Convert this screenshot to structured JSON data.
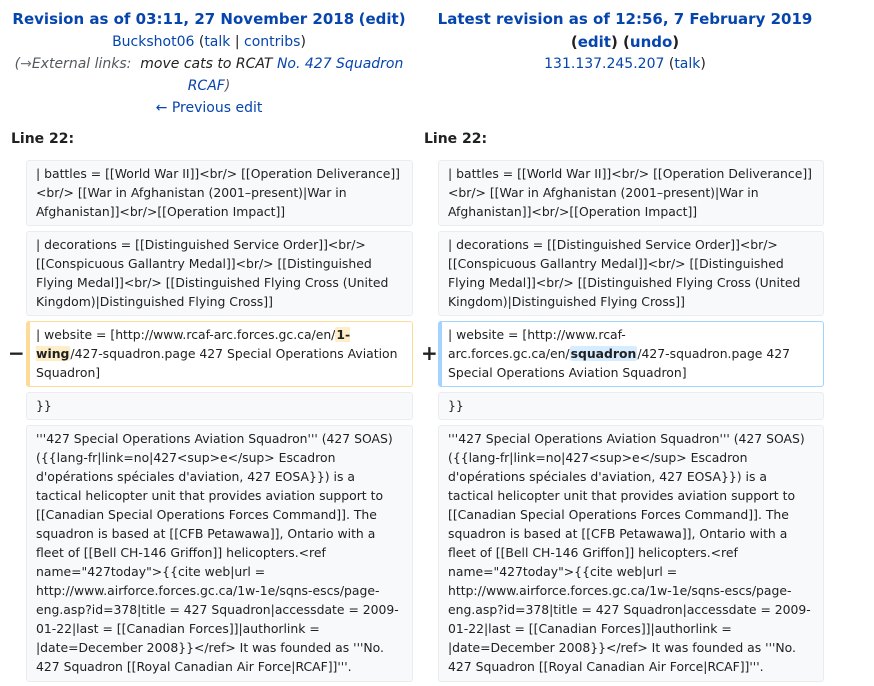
{
  "left": {
    "title_prefix": "Revision as of 03:11, 27 November 2018",
    "title_edit": "edit",
    "user": "Buckshot06",
    "talk": "talk",
    "contribs": "contribs",
    "summary_arrow": "→",
    "summary_section": "External links:",
    "summary_text": "move cats to RCAT",
    "summary_link": "No. 427 Squadron RCAF",
    "prev_edit": "← Previous edit",
    "line_label": "Line 22:"
  },
  "right": {
    "title": "Latest revision as of 12:56, 7 February 2019",
    "edit": "edit",
    "undo": "undo",
    "user": "131.137.245.207",
    "talk": "talk",
    "line_label": "Line 22:"
  },
  "diff": {
    "ctx1": "| battles = [[World War II]]<br/> [[Operation Deliverance]]<br/> [[War in Afghanistan (2001–present)|War in Afghanistan]]<br/>[[Operation Impact]]",
    "ctx2": "| decorations = [[Distinguished Service Order]]<br/> [[Conspicuous Gallantry Medal]]<br/> [[Distinguished Flying Medal]]<br/> [[Distinguished Flying Cross (United Kingdom)|Distinguished Flying Cross]]",
    "del_before": "| website = [http://www.rcaf-arc.forces.gc.ca/en/",
    "del_hl": "1-wing",
    "del_after": "/427-squadron.page 427 Special Operations Aviation Squadron]",
    "add_before": "| website = [http://www.rcaf-arc.forces.gc.ca/en/",
    "add_hl": "squadron",
    "add_after": "/427-squadron.page 427 Special Operations Aviation Squadron]",
    "ctx3": "}}",
    "ctx4": "'''427 Special Operations Aviation Squadron''' (427 SOAS) ({{lang-fr|link=no|427<sup>e</sup> Escadron d'opérations spéciales d'aviation, 427 EOSA}}) is a tactical helicopter unit that provides aviation support to [[Canadian Special Operations Forces Command]]. The squadron is based at [[CFB Petawawa]], Ontario with a fleet of [[Bell CH-146 Griffon]] helicopters.<ref name=\"427today\">{{cite web|url = http://www.airforce.forces.gc.ca/1w-1e/sqns-escs/page-eng.asp?id=378|title = 427 Squadron|accessdate = 2009-01-22|last = [[Canadian Forces]]|authorlink = |date=December 2008}}</ref> It was founded as '''No. 427 Squadron [[Royal Canadian Air Force|RCAF]]'''.",
    "minus": "−",
    "plus": "+"
  }
}
